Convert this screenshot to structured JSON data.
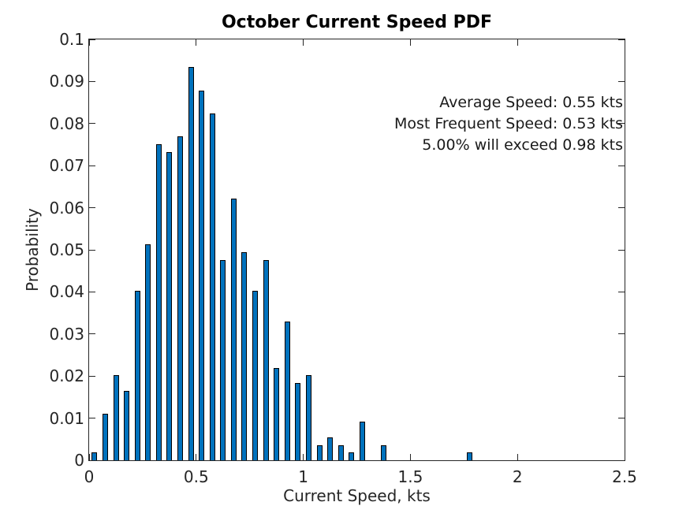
{
  "chart_data": {
    "type": "bar",
    "title": "October Current Speed PDF",
    "xlabel": "Current Speed, kts",
    "ylabel": "Probability",
    "xlim": [
      0,
      2.5
    ],
    "ylim": [
      0,
      0.1
    ],
    "x_ticks": [
      0,
      0.5,
      1,
      1.5,
      2,
      2.5
    ],
    "x_tick_labels": [
      "0",
      "0.5",
      "1",
      "1.5",
      "2",
      "2.5"
    ],
    "y_ticks": [
      0,
      0.01,
      0.02,
      0.03,
      0.04,
      0.05,
      0.06,
      0.07,
      0.08,
      0.09,
      0.1
    ],
    "y_tick_labels": [
      "0",
      "0.01",
      "0.02",
      "0.03",
      "0.04",
      "0.05",
      "0.06",
      "0.07",
      "0.08",
      "0.09",
      "0.1"
    ],
    "bin_width": 0.05,
    "bar_color": "#0072BD",
    "bar_edge_color": "#000000",
    "grid": false,
    "legend": null,
    "x": [
      0.025,
      0.075,
      0.125,
      0.175,
      0.225,
      0.275,
      0.325,
      0.375,
      0.425,
      0.475,
      0.525,
      0.575,
      0.625,
      0.675,
      0.725,
      0.775,
      0.825,
      0.875,
      0.925,
      0.975,
      1.025,
      1.075,
      1.125,
      1.175,
      1.225,
      1.275,
      1.325,
      1.375,
      1.425,
      1.475,
      1.525,
      1.575,
      1.625,
      1.675,
      1.725,
      1.775
    ],
    "values": [
      0.00183,
      0.01099,
      0.02015,
      0.01648,
      0.04029,
      0.05128,
      0.07509,
      0.07326,
      0.07692,
      0.09341,
      0.08791,
      0.08242,
      0.04762,
      0.06227,
      0.04945,
      0.04029,
      0.04762,
      0.02198,
      0.03297,
      0.01832,
      0.02015,
      0.00366,
      0.00549,
      0.00366,
      0.00183,
      0.00916,
      0,
      0.00366,
      0,
      0,
      0,
      0,
      0,
      0,
      0,
      0.00183
    ],
    "annotations": [
      "Average Speed: 0.55 kts",
      "Most Frequent Speed: 0.53 kts",
      "5.00% will exceed 0.98 kts"
    ]
  }
}
